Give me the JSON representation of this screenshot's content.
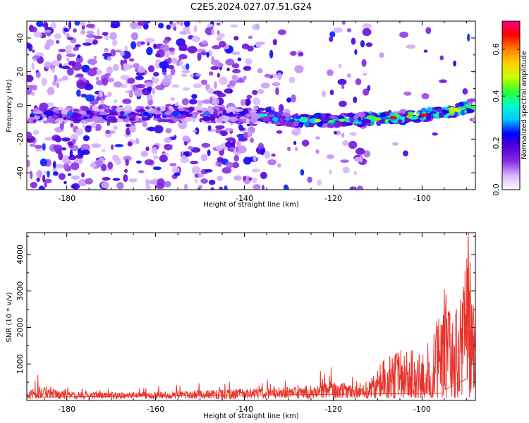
{
  "title": "C2E5.2024.027.07.51.G24",
  "chart_data": [
    {
      "type": "heatmap",
      "xlabel": "Height of straight line (km)",
      "ylabel": "Frequency (Hz)",
      "xlim": [
        -189,
        -88
      ],
      "ylim": [
        -50,
        50
      ],
      "xticks": [
        -180,
        -160,
        -140,
        -120,
        -100
      ],
      "xtick_labels": [
        "-180",
        "-160",
        "-140",
        "-120",
        "-100"
      ],
      "yticks": [
        -40,
        -20,
        0,
        20,
        40
      ],
      "ytick_labels": [
        "-40",
        "-20",
        "0",
        "20",
        "40"
      ],
      "ridge_frequency_trend": [
        {
          "x": -187,
          "y": -6
        },
        {
          "x": -160,
          "y": -5
        },
        {
          "x": -137,
          "y": -6
        },
        {
          "x": -130,
          "y": -9
        },
        {
          "x": -120,
          "y": -9
        },
        {
          "x": -110,
          "y": -8
        },
        {
          "x": -100,
          "y": -6
        },
        {
          "x": -92,
          "y": -3
        },
        {
          "x": -89,
          "y": 0
        }
      ],
      "colorbar": {
        "label": "Normalized spectral amplitude",
        "range": [
          0,
          0.72
        ],
        "ticks": [
          0.0,
          0.2,
          0.4,
          0.6
        ],
        "tick_labels": [
          "0.0",
          "0.2",
          "0.4",
          "0.6"
        ],
        "colors": [
          "#ffffff",
          "#d8b6ff",
          "#8a2be2",
          "#5a00d8",
          "#0000ff",
          "#00c8ff",
          "#00ffcc",
          "#30ff30",
          "#c8ff00",
          "#ffd200",
          "#ff8000",
          "#ff0000",
          "#ff0080"
        ]
      }
    },
    {
      "type": "line",
      "xlabel": "Height of straight line (km)",
      "ylabel": "SNR (10 * v/v)",
      "xlim": [
        -189,
        -88
      ],
      "ylim": [
        0,
        4600
      ],
      "xticks": [
        -180,
        -160,
        -140,
        -120,
        -100
      ],
      "xtick_labels": [
        "-180",
        "-160",
        "-140",
        "-120",
        "-100"
      ],
      "yticks": [
        1000,
        2000,
        3000,
        4000
      ],
      "ytick_labels": [
        "1000",
        "2000",
        "3000",
        "4000"
      ],
      "line_color": "#e8342c",
      "envelope": [
        {
          "x": -189,
          "y": 320
        },
        {
          "x": -186.5,
          "y": 700
        },
        {
          "x": -180,
          "y": 340
        },
        {
          "x": -170,
          "y": 320
        },
        {
          "x": -160,
          "y": 360
        },
        {
          "x": -150,
          "y": 450
        },
        {
          "x": -140,
          "y": 520
        },
        {
          "x": -130,
          "y": 600
        },
        {
          "x": -125,
          "y": 680
        },
        {
          "x": -121,
          "y": 900
        },
        {
          "x": -116,
          "y": 750
        },
        {
          "x": -112,
          "y": 500
        },
        {
          "x": -108,
          "y": 1200
        },
        {
          "x": -104,
          "y": 1400
        },
        {
          "x": -100,
          "y": 1200
        },
        {
          "x": -97,
          "y": 2000
        },
        {
          "x": -95,
          "y": 3050
        },
        {
          "x": -93,
          "y": 2300
        },
        {
          "x": -91,
          "y": 2950
        },
        {
          "x": -89.5,
          "y": 4600
        },
        {
          "x": -88,
          "y": 1500
        }
      ]
    }
  ]
}
